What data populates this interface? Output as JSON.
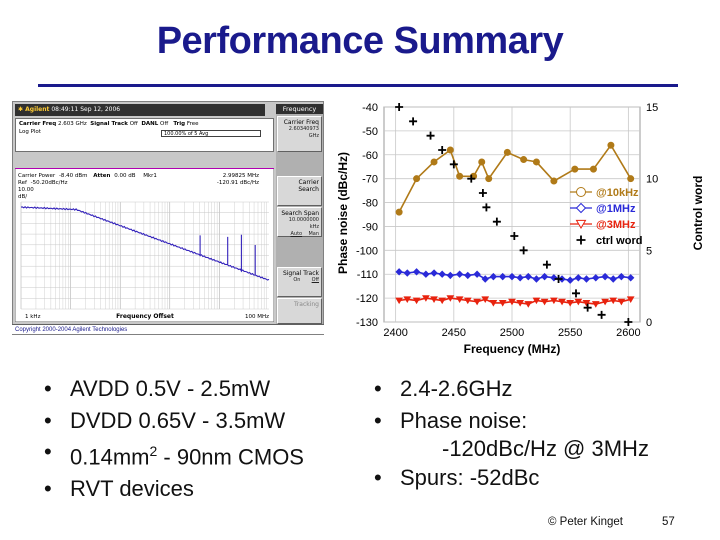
{
  "title": "Performance Summary",
  "analyzer": {
    "brand": "Agilent",
    "time": "08:49:11",
    "date": "Sep 12, 2006",
    "menu_title": "Frequency",
    "carrier_freq_label": "Carrier Freq",
    "carrier_freq_value": "2.603 GHz",
    "signal_track_label": "Signal Track",
    "signal_track_value": "Off",
    "danl_label": "DANL",
    "danl_value": "Off",
    "trig_label": "Trig",
    "trig_value": "Free",
    "log_plot": "Log Plot",
    "avg_value": "100.00% of 5 Avg",
    "carrier_power_label": "Carrier Power",
    "carrier_power_value": "-8.40 dBm",
    "atten_label": "Atten",
    "atten_value": "0.00 dB",
    "mkr_label": "Mkr1",
    "mkr_freq": "2.99825 MHz",
    "ref_label": "Ref",
    "ref_value": "-50.20dBc/Hz",
    "mkr_value": "-120.91 dBc/Hz",
    "scale": "10.00",
    "scale_unit": "dB/",
    "x_start": "1 kHz",
    "x_label": "Frequency Offset",
    "x_end": "100 MHz",
    "copyright": "Copyright 2000-2004 Agilent Technologies",
    "softkeys": [
      {
        "label": "Carrier Freq",
        "sub": "2.60340973 GHz"
      },
      {
        "label": "Carrier",
        "sub": "Search"
      },
      {
        "label": "Search Span",
        "sub": "10.0000000 kHz",
        "sub2a": "Auto",
        "sub2b": "Man"
      },
      {
        "label": "Signal Track",
        "sub2a": "On",
        "sub2b": "Off"
      },
      {
        "label": "Tracking"
      }
    ]
  },
  "chart_data": {
    "type": "line",
    "xlabel": "Frequency (MHz)",
    "ylabel": "Phase noise (dBc/Hz)",
    "y2label": "Control word",
    "xlim": [
      2390,
      2610
    ],
    "ylim": [
      -130,
      -40
    ],
    "y2lim": [
      0,
      15
    ],
    "xticks": [
      2400,
      2450,
      2500,
      2550,
      2600
    ],
    "yticks": [
      -40,
      -50,
      -60,
      -70,
      -80,
      -90,
      -100,
      -110,
      -120,
      -130
    ],
    "y2ticks": [
      0,
      5,
      10,
      15
    ],
    "grid": true,
    "legend_position": "right",
    "series": [
      {
        "name": "@10kHz",
        "marker": "circle",
        "color": "#b07a18",
        "x": [
          2403,
          2418,
          2433,
          2447,
          2455,
          2467,
          2474,
          2480,
          2496,
          2510,
          2521,
          2536,
          2554,
          2570,
          2585,
          2602
        ],
        "values": [
          -84,
          -70,
          -63,
          -58,
          -69,
          -69,
          -63,
          -70,
          -59,
          -62,
          -63,
          -71,
          -66,
          -66,
          -56,
          -70
        ]
      },
      {
        "name": "@1MHz",
        "marker": "diamond",
        "color": "#2a2ad8",
        "x": [
          2403,
          2410,
          2418,
          2426,
          2433,
          2440,
          2447,
          2455,
          2462,
          2470,
          2477,
          2484,
          2492,
          2500,
          2507,
          2514,
          2521,
          2528,
          2536,
          2543,
          2550,
          2557,
          2564,
          2572,
          2580,
          2587,
          2594,
          2602
        ],
        "values": [
          -109,
          -109.5,
          -109,
          -110,
          -109.5,
          -110,
          -110.5,
          -110,
          -110.5,
          -110,
          -112,
          -111,
          -111,
          -111,
          -111.5,
          -111,
          -112,
          -111,
          -111.5,
          -112,
          -112.5,
          -111.5,
          -112,
          -111.5,
          -111,
          -112,
          -111,
          -111.5
        ]
      },
      {
        "name": "@3MHz",
        "marker": "triangle-down",
        "color": "#e8230f",
        "x": [
          2403,
          2410,
          2418,
          2426,
          2433,
          2440,
          2447,
          2455,
          2462,
          2470,
          2477,
          2484,
          2492,
          2500,
          2507,
          2514,
          2521,
          2528,
          2536,
          2543,
          2550,
          2557,
          2564,
          2572,
          2580,
          2587,
          2594,
          2602
        ],
        "values": [
          -121,
          -120.5,
          -121,
          -120,
          -120.5,
          -121,
          -120,
          -120.5,
          -121,
          -121.5,
          -120.5,
          -122,
          -122,
          -121.5,
          -122,
          -122.5,
          -121,
          -121.5,
          -121,
          -121.5,
          -122,
          -121.5,
          -122,
          -122.5,
          -121.5,
          -121,
          -121.5,
          -120.5
        ]
      },
      {
        "name": "ctrl word",
        "marker": "plus",
        "color": "#000000",
        "axis": "right",
        "x": [
          2403,
          2415,
          2430,
          2440,
          2450,
          2465,
          2475,
          2478,
          2487,
          2502,
          2510,
          2530,
          2540,
          2555,
          2565,
          2577,
          2600
        ],
        "values": [
          15,
          14,
          13,
          12,
          11,
          10,
          9,
          8,
          7,
          6,
          5,
          4,
          3,
          2,
          1,
          0.5,
          0
        ]
      }
    ]
  },
  "bullets_left": [
    {
      "text": "AVDD 0.5V - 2.5mW"
    },
    {
      "text": "DVDD 0.65V - 3.5mW"
    },
    {
      "text_pre": "0.14mm",
      "sup": "2",
      "text_post": " - 90nm CMOS"
    },
    {
      "text": "RVT devices"
    }
  ],
  "bullets_right": [
    {
      "text": "2.4-2.6GHz"
    },
    {
      "text": "Phase noise:",
      "cont": "-120dBc/Hz @ 3MHz"
    },
    {
      "text": "Spurs: -52dBc"
    }
  ],
  "footer": {
    "copyright": "© Peter Kinget",
    "page": "57"
  }
}
